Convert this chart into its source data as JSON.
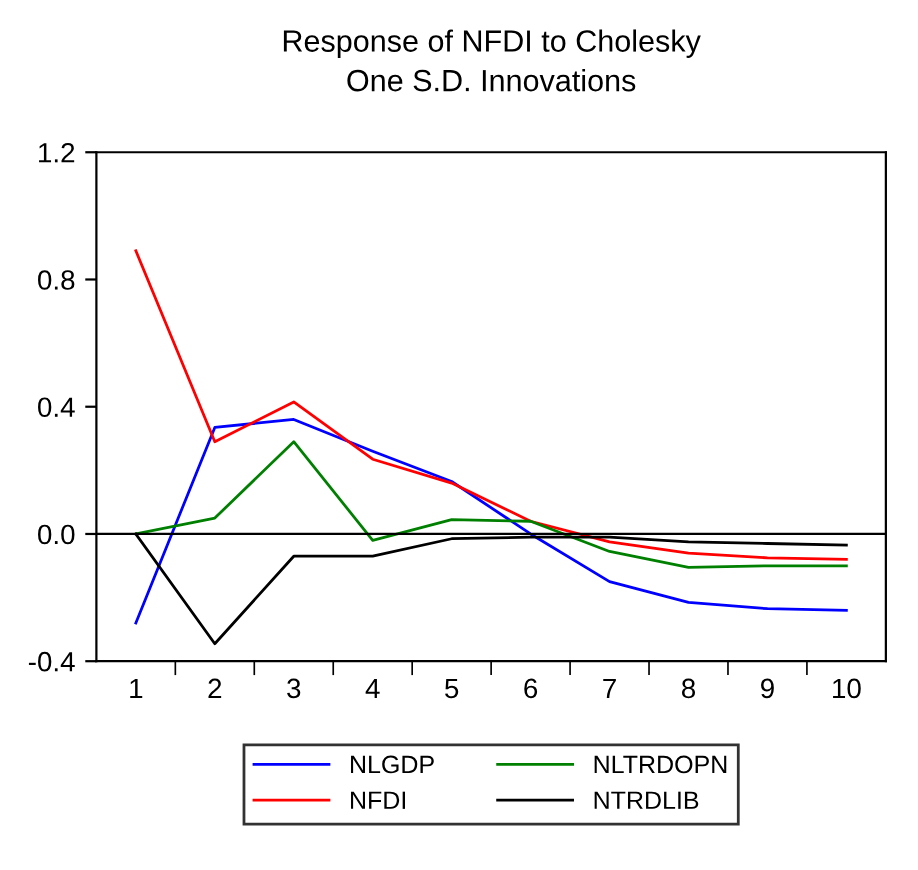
{
  "chart_data": {
    "type": "line",
    "title": "Response of NFDI to Cholesky\nOne S.D. Innovations",
    "categories": [
      "1",
      "2",
      "3",
      "4",
      "5",
      "6",
      "7",
      "8",
      "9",
      "10"
    ],
    "series": [
      {
        "name": "NLGDP",
        "color": "#0000ff",
        "values": [
          -0.28,
          0.335,
          0.36,
          0.26,
          0.165,
          0.0,
          -0.15,
          -0.215,
          -0.235,
          -0.24
        ]
      },
      {
        "name": "NFDI",
        "color": "#ff0000",
        "values": [
          0.89,
          0.29,
          0.415,
          0.235,
          0.16,
          0.04,
          -0.025,
          -0.06,
          -0.075,
          -0.08
        ]
      },
      {
        "name": "NLTRDOPN",
        "color": "#008000",
        "values": [
          0.0,
          0.05,
          0.29,
          -0.02,
          0.045,
          0.04,
          -0.055,
          -0.105,
          -0.1,
          -0.1
        ]
      },
      {
        "name": "NTRDLIB",
        "color": "#000000",
        "values": [
          0.0,
          -0.345,
          -0.07,
          -0.07,
          -0.015,
          -0.01,
          -0.01,
          -0.025,
          -0.03,
          -0.035
        ]
      }
    ],
    "ylim": [
      -0.4,
      1.2
    ],
    "yticks": [
      {
        "value": -0.4,
        "label": "-0.4"
      },
      {
        "value": 0.0,
        "label": "0.0"
      },
      0.4,
      0.8,
      1.2
    ],
    "ref_lines": [
      {
        "axis": "y",
        "value": 0,
        "color": "#000000"
      }
    ],
    "grid": false,
    "legend": "bottom",
    "marker": "none",
    "line_style": "solid"
  }
}
